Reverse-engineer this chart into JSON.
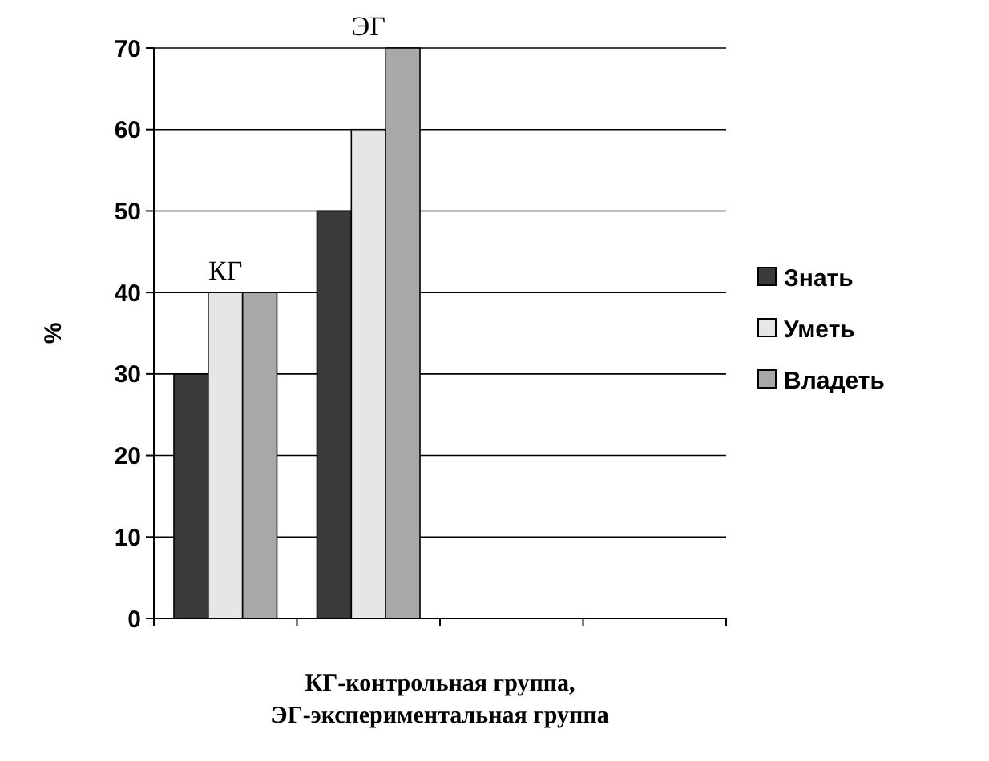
{
  "chart_data": {
    "type": "bar",
    "ylabel": "%",
    "xlabel": "КГ-контрольная группа,\nЭГ-экспериментальная группа",
    "categories": [
      null,
      null,
      null,
      null
    ],
    "series": [
      {
        "name": "Знать",
        "color": "#3a3a3a",
        "values": [
          30,
          50,
          null,
          null
        ]
      },
      {
        "name": "Уметь",
        "color": "#e6e6e6",
        "values": [
          40,
          60,
          null,
          null
        ]
      },
      {
        "name": "Владеть",
        "color": "#a8a8a8",
        "values": [
          40,
          70,
          null,
          null
        ]
      }
    ],
    "annotations": [
      "КГ",
      "ЭГ"
    ],
    "ylim": [
      0,
      70
    ],
    "yticks": [
      0,
      10,
      20,
      30,
      40,
      50,
      60,
      70
    ],
    "grid": "y",
    "legend": "right"
  }
}
